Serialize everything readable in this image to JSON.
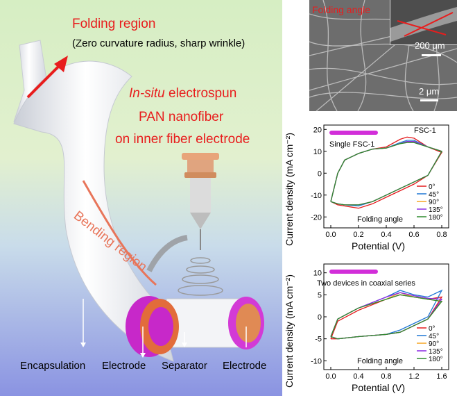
{
  "schematic": {
    "folding_region_title": "Folding region",
    "folding_region_desc": "(Zero curvature radius, sharp wrinkle)",
    "electrospun_line1_italic": "In-situ",
    "electrospun_line1_rest": " electrospun",
    "electrospun_line2": "PAN nanofiber",
    "electrospun_line3": "on inner fiber electrode",
    "bending_region": "Bending region",
    "layer_labels": [
      "Encapsulation",
      "Electrode",
      "Separator",
      "Electrode"
    ]
  },
  "sem": {
    "inset_label": "Folding angle",
    "inset_scalebar": "200 μm",
    "main_scalebar": "2 μm"
  },
  "colors": {
    "accent_red": "#e81d1d",
    "magenta": "#d22ed9",
    "series": [
      "#e41a1c",
      "#1f77d4",
      "#f5a623",
      "#8a2be2",
      "#2e8b2e"
    ]
  },
  "chart_data": [
    {
      "type": "line",
      "title": "FSC-1",
      "inset_label": "Single FSC-1",
      "annotation": "Folding angle",
      "xlabel": "Potential (V)",
      "ylabel": "Current density (mA cm⁻²)",
      "xlim": [
        -0.05,
        0.85
      ],
      "ylim": [
        -25,
        22
      ],
      "xticks": [
        "0.0",
        "0.2",
        "0.4",
        "0.6",
        "0.8"
      ],
      "yticks": [
        "20",
        "10",
        "0",
        "-10",
        "-20"
      ],
      "legend_position": "bottom-right",
      "series": [
        {
          "name": "0°",
          "x_up": [
            0,
            0.05,
            0.1,
            0.2,
            0.3,
            0.4,
            0.5,
            0.55,
            0.6,
            0.7,
            0.8
          ],
          "y_up": [
            -13,
            0,
            6,
            9,
            11,
            12,
            15.5,
            16.5,
            16,
            12,
            9.5
          ],
          "x_down": [
            0.8,
            0.7,
            0.6,
            0.5,
            0.4,
            0.3,
            0.2,
            0.1,
            0.05,
            0
          ],
          "y_down": [
            9.5,
            -1,
            -5,
            -8,
            -11,
            -14,
            -16,
            -15,
            -14.5,
            -13
          ]
        },
        {
          "name": "45°",
          "x_up": [
            0,
            0.05,
            0.1,
            0.2,
            0.3,
            0.4,
            0.5,
            0.55,
            0.6,
            0.7,
            0.8
          ],
          "y_up": [
            -13,
            0,
            6,
            9,
            11,
            11.5,
            14,
            15,
            15,
            12,
            10
          ],
          "x_down": [
            0.8,
            0.7,
            0.6,
            0.5,
            0.4,
            0.3,
            0.2,
            0.1,
            0.05,
            0
          ],
          "y_down": [
            10,
            -1,
            -4,
            -7,
            -10,
            -13,
            -15,
            -14.5,
            -14,
            -13
          ]
        },
        {
          "name": "90°",
          "x_up": [
            0,
            0.05,
            0.1,
            0.2,
            0.3,
            0.4,
            0.5,
            0.55,
            0.6,
            0.7,
            0.8
          ],
          "y_up": [
            -13,
            0,
            6,
            9,
            11,
            11.5,
            13.5,
            14.5,
            14.5,
            12,
            10
          ],
          "x_down": [
            0.8,
            0.7,
            0.6,
            0.5,
            0.4,
            0.3,
            0.2,
            0.1,
            0.05,
            0
          ],
          "y_down": [
            10,
            -1,
            -4,
            -7,
            -10,
            -13,
            -14.5,
            -14.5,
            -14,
            -13
          ]
        },
        {
          "name": "135°",
          "x_up": [
            0,
            0.05,
            0.1,
            0.2,
            0.3,
            0.4,
            0.5,
            0.55,
            0.6,
            0.7,
            0.8
          ],
          "y_up": [
            -13,
            0,
            6,
            9,
            11,
            11.5,
            13.5,
            14.5,
            14.5,
            12,
            10
          ],
          "x_down": [
            0.8,
            0.7,
            0.6,
            0.5,
            0.4,
            0.3,
            0.2,
            0.1,
            0.05,
            0
          ],
          "y_down": [
            10,
            -1,
            -4,
            -7,
            -10,
            -13,
            -14.5,
            -14.5,
            -14,
            -13
          ]
        },
        {
          "name": "180°",
          "x_up": [
            0,
            0.05,
            0.1,
            0.2,
            0.3,
            0.4,
            0.5,
            0.55,
            0.6,
            0.7,
            0.8
          ],
          "y_up": [
            -13,
            0,
            6,
            9,
            11,
            11.5,
            13.5,
            14,
            14,
            12,
            10
          ],
          "x_down": [
            0.8,
            0.7,
            0.6,
            0.5,
            0.4,
            0.3,
            0.2,
            0.1,
            0.05,
            0
          ],
          "y_down": [
            10,
            -1,
            -4,
            -7,
            -10,
            -13,
            -14.5,
            -14.5,
            -14,
            -13
          ]
        }
      ]
    },
    {
      "type": "line",
      "title": "",
      "inset_label": "Two devices in coaxial series",
      "annotation": "Folding angle",
      "xlabel": "Potential (V)",
      "ylabel": "Current density (mA cm⁻²)",
      "xlim": [
        -0.1,
        1.7
      ],
      "ylim": [
        -12,
        12
      ],
      "xticks": [
        "0.0",
        "0.4",
        "0.8",
        "1.2",
        "1.6"
      ],
      "yticks": [
        "10",
        "5",
        "0",
        "-5",
        "-10"
      ],
      "legend_position": "bottom-right",
      "series": [
        {
          "name": "0°",
          "x_up": [
            0,
            0.1,
            0.4,
            0.8,
            1.0,
            1.2,
            1.4,
            1.6
          ],
          "y_up": [
            -5,
            -1,
            1.5,
            4,
            5,
            4.5,
            4,
            4.5
          ],
          "x_down": [
            1.6,
            1.4,
            1.2,
            1.0,
            0.8,
            0.4,
            0.1,
            0
          ],
          "y_down": [
            4.5,
            -0.5,
            -2,
            -3.5,
            -4,
            -4.5,
            -5,
            -5
          ]
        },
        {
          "name": "45°",
          "x_up": [
            0,
            0.1,
            0.4,
            0.8,
            1.0,
            1.2,
            1.4,
            1.6
          ],
          "y_up": [
            -4.5,
            -0.5,
            2,
            4.5,
            6,
            5,
            4.5,
            6
          ],
          "x_down": [
            1.6,
            1.4,
            1.2,
            1.0,
            0.8,
            0.4,
            0.1,
            0
          ],
          "y_down": [
            6,
            0,
            -1.5,
            -3,
            -4,
            -4.5,
            -5,
            -4.5
          ]
        },
        {
          "name": "90°",
          "x_up": [
            0,
            0.1,
            0.4,
            0.8,
            1.0,
            1.2,
            1.4,
            1.6
          ],
          "y_up": [
            -4.5,
            -0.5,
            2,
            4,
            5.5,
            4.5,
            4,
            3.5
          ],
          "x_down": [
            1.6,
            1.4,
            1.2,
            1.0,
            0.8,
            0.4,
            0.1,
            0
          ],
          "y_down": [
            3.5,
            -0.5,
            -2,
            -3.5,
            -4,
            -4.5,
            -5,
            -4.5
          ]
        },
        {
          "name": "135°",
          "x_up": [
            0,
            0.1,
            0.4,
            0.8,
            1.0,
            1.2,
            1.4,
            1.6
          ],
          "y_up": [
            -4.5,
            -0.5,
            2,
            4.5,
            5.5,
            4.8,
            4.2,
            4
          ],
          "x_down": [
            1.6,
            1.4,
            1.2,
            1.0,
            0.8,
            0.4,
            0.1,
            0
          ],
          "y_down": [
            4,
            -0.5,
            -2,
            -3.5,
            -4,
            -4.5,
            -5,
            -4.5
          ]
        },
        {
          "name": "180°",
          "x_up": [
            0,
            0.1,
            0.4,
            0.8,
            1.0,
            1.2,
            1.4,
            1.6
          ],
          "y_up": [
            -4.5,
            -0.5,
            2,
            4,
            5,
            4.5,
            4,
            3.5
          ],
          "x_down": [
            1.6,
            1.4,
            1.2,
            1.0,
            0.8,
            0.4,
            0.1,
            0
          ],
          "y_down": [
            3.5,
            -0.5,
            -2,
            -3.5,
            -4,
            -4.5,
            -5,
            -4.5
          ]
        }
      ]
    }
  ]
}
